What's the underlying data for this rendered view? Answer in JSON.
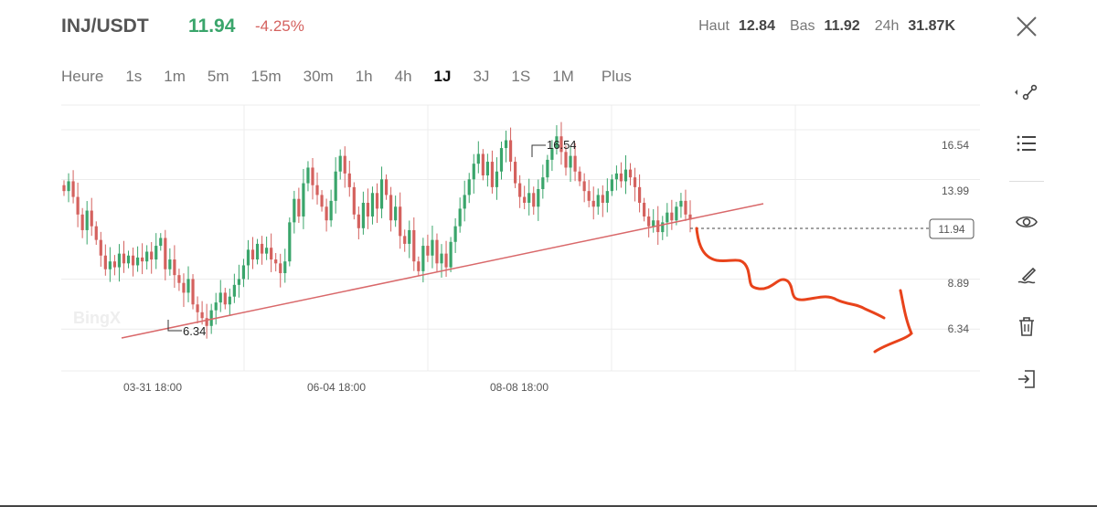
{
  "header": {
    "pair": "INJ/USDT",
    "price": "11.94",
    "change": "-4.25%",
    "high_label": "Haut",
    "high_value": "12.84",
    "low_label": "Bas",
    "low_value": "11.92",
    "vol_label": "24h",
    "vol_value": "31.87K"
  },
  "timeframes": [
    {
      "label": "Heure",
      "active": false
    },
    {
      "label": "1s",
      "active": false
    },
    {
      "label": "1m",
      "active": false
    },
    {
      "label": "5m",
      "active": false
    },
    {
      "label": "15m",
      "active": false
    },
    {
      "label": "30m",
      "active": false
    },
    {
      "label": "1h",
      "active": false
    },
    {
      "label": "4h",
      "active": false
    },
    {
      "label": "1J",
      "active": true
    },
    {
      "label": "3J",
      "active": false
    },
    {
      "label": "1S",
      "active": false
    },
    {
      "label": "1M",
      "active": false
    },
    {
      "label": "Plus",
      "active": false
    }
  ],
  "toolbar": {
    "icons": [
      "draw-line-icon",
      "list-icon",
      "eye-icon",
      "brush-icon",
      "trash-icon",
      "exit-icon"
    ]
  },
  "chart_data": {
    "type": "candlestick",
    "y_ticks": [
      "16.54",
      "13.99",
      "8.89",
      "6.34"
    ],
    "x_ticks": [
      "03-31 18:00",
      "06-04 18:00",
      "08-08 18:00"
    ],
    "ylim": [
      4.2,
      17.8
    ],
    "max_marker": "16.54",
    "min_marker": "6.34",
    "current_price_label": "11.94",
    "current_price": 11.94,
    "watermark": "BingX",
    "colors": {
      "up": "#3aa56b",
      "down": "#d4615e",
      "trendline": "#d9686a",
      "annotation": "#e8431b"
    },
    "closes": [
      13.4,
      13.9,
      13.1,
      12.2,
      11.4,
      12.4,
      11.6,
      10.9,
      10.1,
      9.4,
      9.8,
      9.5,
      10.2,
      9.7,
      10.1,
      9.6,
      10.0,
      9.8,
      10.3,
      9.9,
      10.6,
      11.0,
      9.4,
      9.9,
      9.1,
      8.7,
      8.2,
      8.9,
      7.6,
      7.2,
      6.9,
      6.5,
      7.3,
      7.7,
      8.2,
      7.6,
      8.0,
      8.6,
      8.9,
      9.6,
      10.4,
      9.9,
      10.7,
      10.2,
      10.5,
      9.9,
      9.7,
      9.2,
      9.8,
      11.8,
      13.0,
      12.1,
      13.8,
      14.6,
      13.7,
      13.2,
      12.6,
      11.9,
      12.9,
      14.4,
      15.2,
      14.3,
      13.6,
      12.2,
      11.5,
      12.8,
      12.1,
      13.3,
      12.5,
      14.0,
      13.2,
      11.9,
      12.6,
      11.1,
      10.7,
      11.4,
      9.8,
      9.3,
      10.6,
      10.1,
      10.9,
      9.7,
      10.2,
      9.5,
      10.8,
      11.6,
      12.5,
      13.2,
      14.0,
      14.8,
      15.3,
      14.2,
      14.9,
      13.6,
      14.4,
      15.6,
      16.0,
      14.9,
      13.8,
      13.1,
      12.8,
      13.3,
      12.6,
      13.5,
      14.1,
      15.0,
      15.6,
      16.2,
      15.4,
      14.6,
      15.2,
      14.4,
      13.9,
      13.4,
      12.9,
      12.6,
      13.2,
      12.8,
      13.4,
      14.0,
      14.3,
      13.9,
      14.5,
      14.1,
      13.6,
      12.8,
      12.1,
      11.6,
      11.9,
      11.3,
      11.8,
      12.3,
      11.9,
      12.6,
      12.9,
      12.2,
      11.94
    ]
  }
}
